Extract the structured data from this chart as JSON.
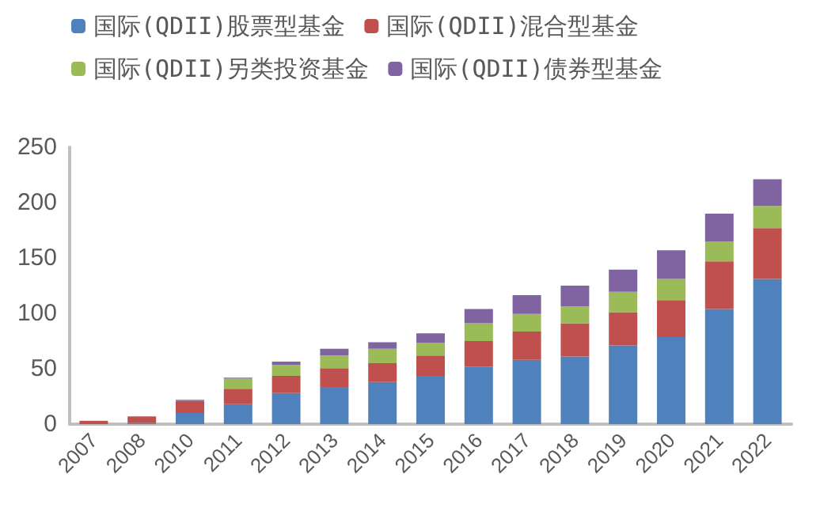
{
  "chart_data": {
    "type": "bar",
    "stacked": true,
    "categories": [
      "2007",
      "2008",
      "2010",
      "2011",
      "2012",
      "2013",
      "2014",
      "2015",
      "2016",
      "2017",
      "2018",
      "2019",
      "2020",
      "2021",
      "2022"
    ],
    "series": [
      {
        "name": "国际(QDII)股票型基金",
        "color": "#4f81bd",
        "values": [
          0,
          1,
          10,
          18,
          28,
          33.5,
          38,
          43.5,
          52,
          58,
          61,
          71,
          78.5,
          104,
          131
        ]
      },
      {
        "name": "国际(QDII)混合型基金",
        "color": "#c0504d",
        "values": [
          3,
          6,
          11,
          14,
          15.5,
          17,
          17,
          18.5,
          23,
          25.5,
          30,
          30,
          33.5,
          43,
          46
        ]
      },
      {
        "name": "国际(QDII)另类投资基金",
        "color": "#9bbb59",
        "values": [
          0,
          0,
          0,
          9,
          10,
          11.5,
          13,
          11.5,
          16,
          16,
          15.5,
          18.5,
          19,
          18,
          20
        ]
      },
      {
        "name": "国际(QDII)债券型基金",
        "color": "#8064a2",
        "values": [
          0,
          0,
          1,
          1,
          3,
          6,
          6,
          8.5,
          13,
          17,
          18.5,
          20,
          26,
          25,
          24
        ]
      }
    ],
    "ylim": [
      0,
      250
    ],
    "yticks": [
      0,
      50,
      100,
      150,
      200,
      250
    ],
    "grid": false,
    "legend": "top"
  }
}
